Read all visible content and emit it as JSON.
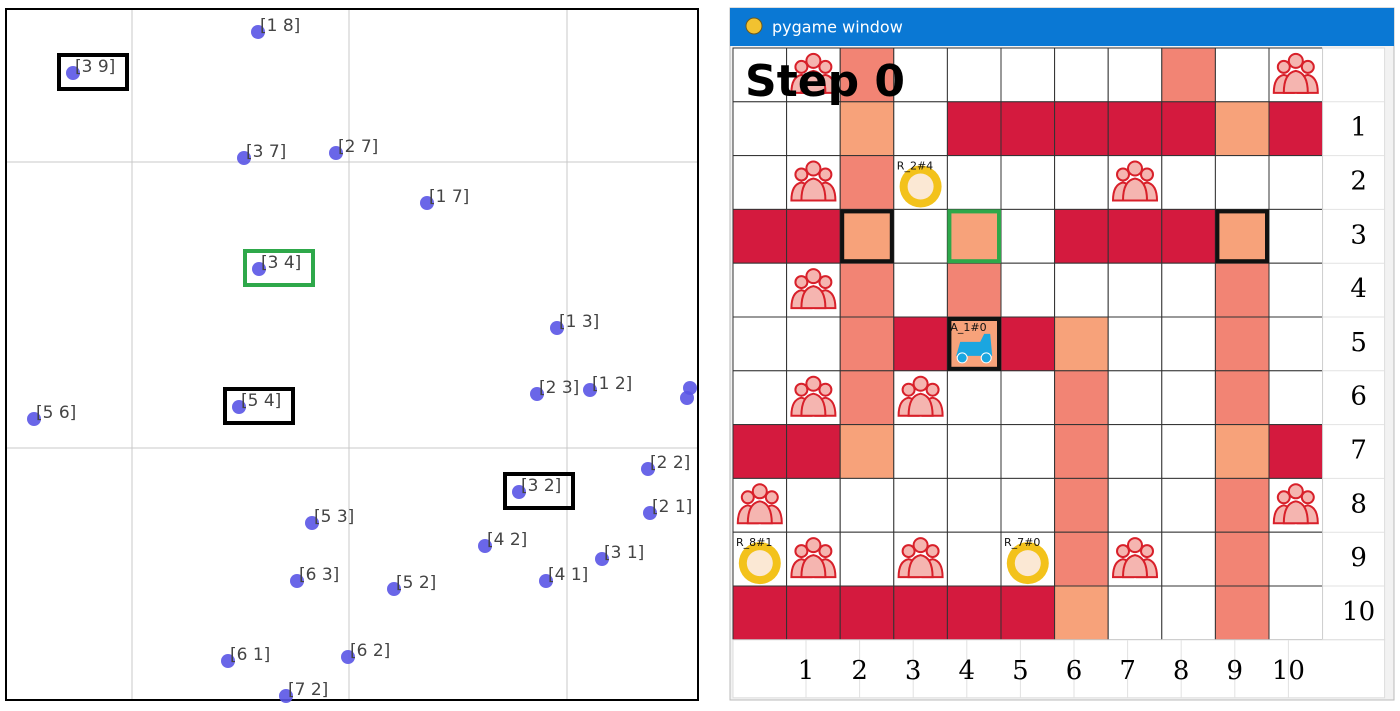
{
  "scatter_labels": [
    "[1 8]",
    "[3 9]",
    "[3 7]",
    "[2 7]",
    "[1 7]",
    "[3 4]",
    "[1 3]",
    "[5 6]",
    "[5 4]",
    "[2 3]",
    "[1 2]",
    "[2 2]",
    "[3 2]",
    "[2 1]",
    "[5 3]",
    "[4 2]",
    "[3 1]",
    "[6 3]",
    "[5 2]",
    "[4 1]",
    "[6 1]",
    "[6 2]",
    "[7 2]"
  ],
  "window": {
    "title": "pygame window",
    "step": "Step 0",
    "row_labels": [
      "1",
      "2",
      "3",
      "4",
      "5",
      "6",
      "7",
      "8",
      "9",
      "10"
    ],
    "column_labels": [
      "1",
      "2",
      "3",
      "4",
      "5",
      "6",
      "7",
      "8",
      "9",
      "10"
    ],
    "agents": [
      "R_2#4",
      "A_1#0",
      "R_8#1",
      "R_7#0"
    ]
  }
}
